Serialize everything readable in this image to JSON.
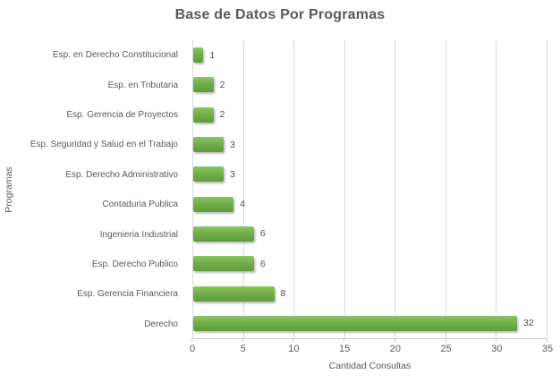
{
  "colors": {
    "bar": "#70AD47",
    "bar_light": "#8CC563",
    "bar_dark": "#619B3C",
    "grid": "#D9D9D9",
    "axis": "#C6C6C6",
    "text": "#595959"
  },
  "chart_data": {
    "type": "bar",
    "orientation": "horizontal",
    "title": "Base de Datos Por Programas",
    "xlabel": "Cantidad Consultas",
    "ylabel": "Programas",
    "xlim": [
      0,
      35
    ],
    "xticks": [
      0,
      5,
      10,
      15,
      20,
      25,
      30,
      35
    ],
    "grid": true,
    "legend": false,
    "categories": [
      "Esp. en Derecho Constitucional",
      "Esp. en Tributaria",
      "Esp. Gerencia de Proyectos",
      "Esp. Seguridad y Salud en el Trabajo",
      "Esp. Derecho Administrativo",
      "Contaduria Publica",
      "Ingenieria Industrial",
      "Esp. Derecho Publico",
      "Esp. Gerencia Financiera",
      "Derecho"
    ],
    "values": [
      1,
      2,
      2,
      3,
      3,
      4,
      6,
      6,
      8,
      32
    ]
  }
}
